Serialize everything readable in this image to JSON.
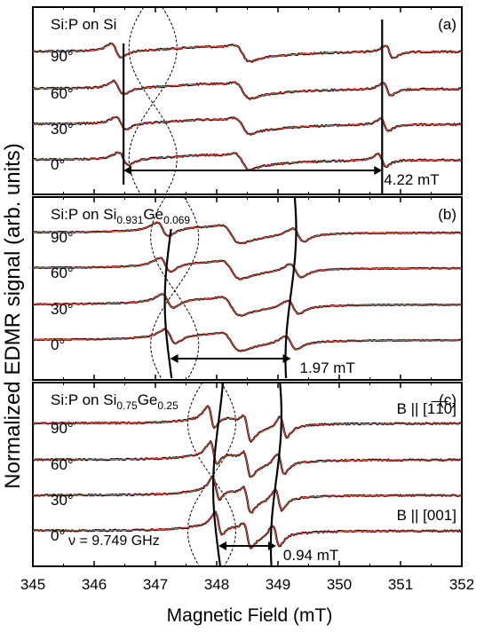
{
  "chart_data": {
    "type": "line",
    "ylabel": "Normalized EDMR signal (arb. units)",
    "xlabel": "Magnetic Field (mT)",
    "xlim": [
      345,
      352
    ],
    "x_ticks": [
      "345",
      "346",
      "347",
      "348",
      "349",
      "350",
      "351",
      "352"
    ],
    "series_colors": {
      "data": "#000000",
      "fit": "#e8483b"
    },
    "panels": [
      {
        "id": "a",
        "tag": "(a)",
        "sample": {
          "base": "Si:P on Si",
          "sub1": "",
          "mid": "",
          "sub2": ""
        },
        "angles": [
          "90°",
          "60°",
          "30°",
          "0°"
        ],
        "hyperfine_lines_mT": [
          346.48,
          350.7
        ],
        "splitting_label": "4.22 mT",
        "central_line_mT": 348.42,
        "noise": 0.035
      },
      {
        "id": "b",
        "tag": "(b)",
        "sample": {
          "base": "Si:P on Si",
          "sub1": "0.931",
          "mid": "Ge",
          "sub2": "0.069"
        },
        "angles": [
          "90°",
          "60°",
          "30°",
          "0°"
        ],
        "hyperfine_lines_mT": [
          347.24,
          349.21
        ],
        "splitting_label": "1.97 mT",
        "central_line_mT": 348.24,
        "noise": 0.02
      },
      {
        "id": "c",
        "tag": "(c)",
        "sample": {
          "base": "Si:P on Si",
          "sub1": "0.75",
          "mid": "Ge",
          "sub2": "0.25"
        },
        "angles": [
          "90°",
          "60°",
          "30°",
          "0°"
        ],
        "hyperfine_lines_mT": [
          348.03,
          348.97
        ],
        "splitting_label": "0.94 mT",
        "central_line_mT": 348.5,
        "noise": 0.02,
        "frequency_label": "ν = 9.749 GHz",
        "orientation_top": "B || [1̅1̅0]",
        "orientation_bottom": "B || [001]"
      }
    ]
  }
}
